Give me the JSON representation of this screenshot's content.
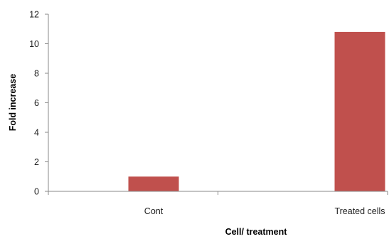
{
  "chart_data": {
    "type": "bar",
    "title": "",
    "xlabel": "Cell/ treatment",
    "ylabel": "Fold increase",
    "categories": [
      "Cont",
      "Treated cells"
    ],
    "values": [
      1.0,
      10.8
    ],
    "ylim": [
      0,
      12
    ],
    "yticks": [
      0,
      2,
      4,
      6,
      8,
      10,
      12
    ],
    "ytick_labels": [
      "0",
      "2",
      "4",
      "6",
      "8",
      "10",
      "12"
    ],
    "grid": false,
    "legend": "none",
    "bar_color": "#c0504d",
    "axis_color": "#888888"
  }
}
